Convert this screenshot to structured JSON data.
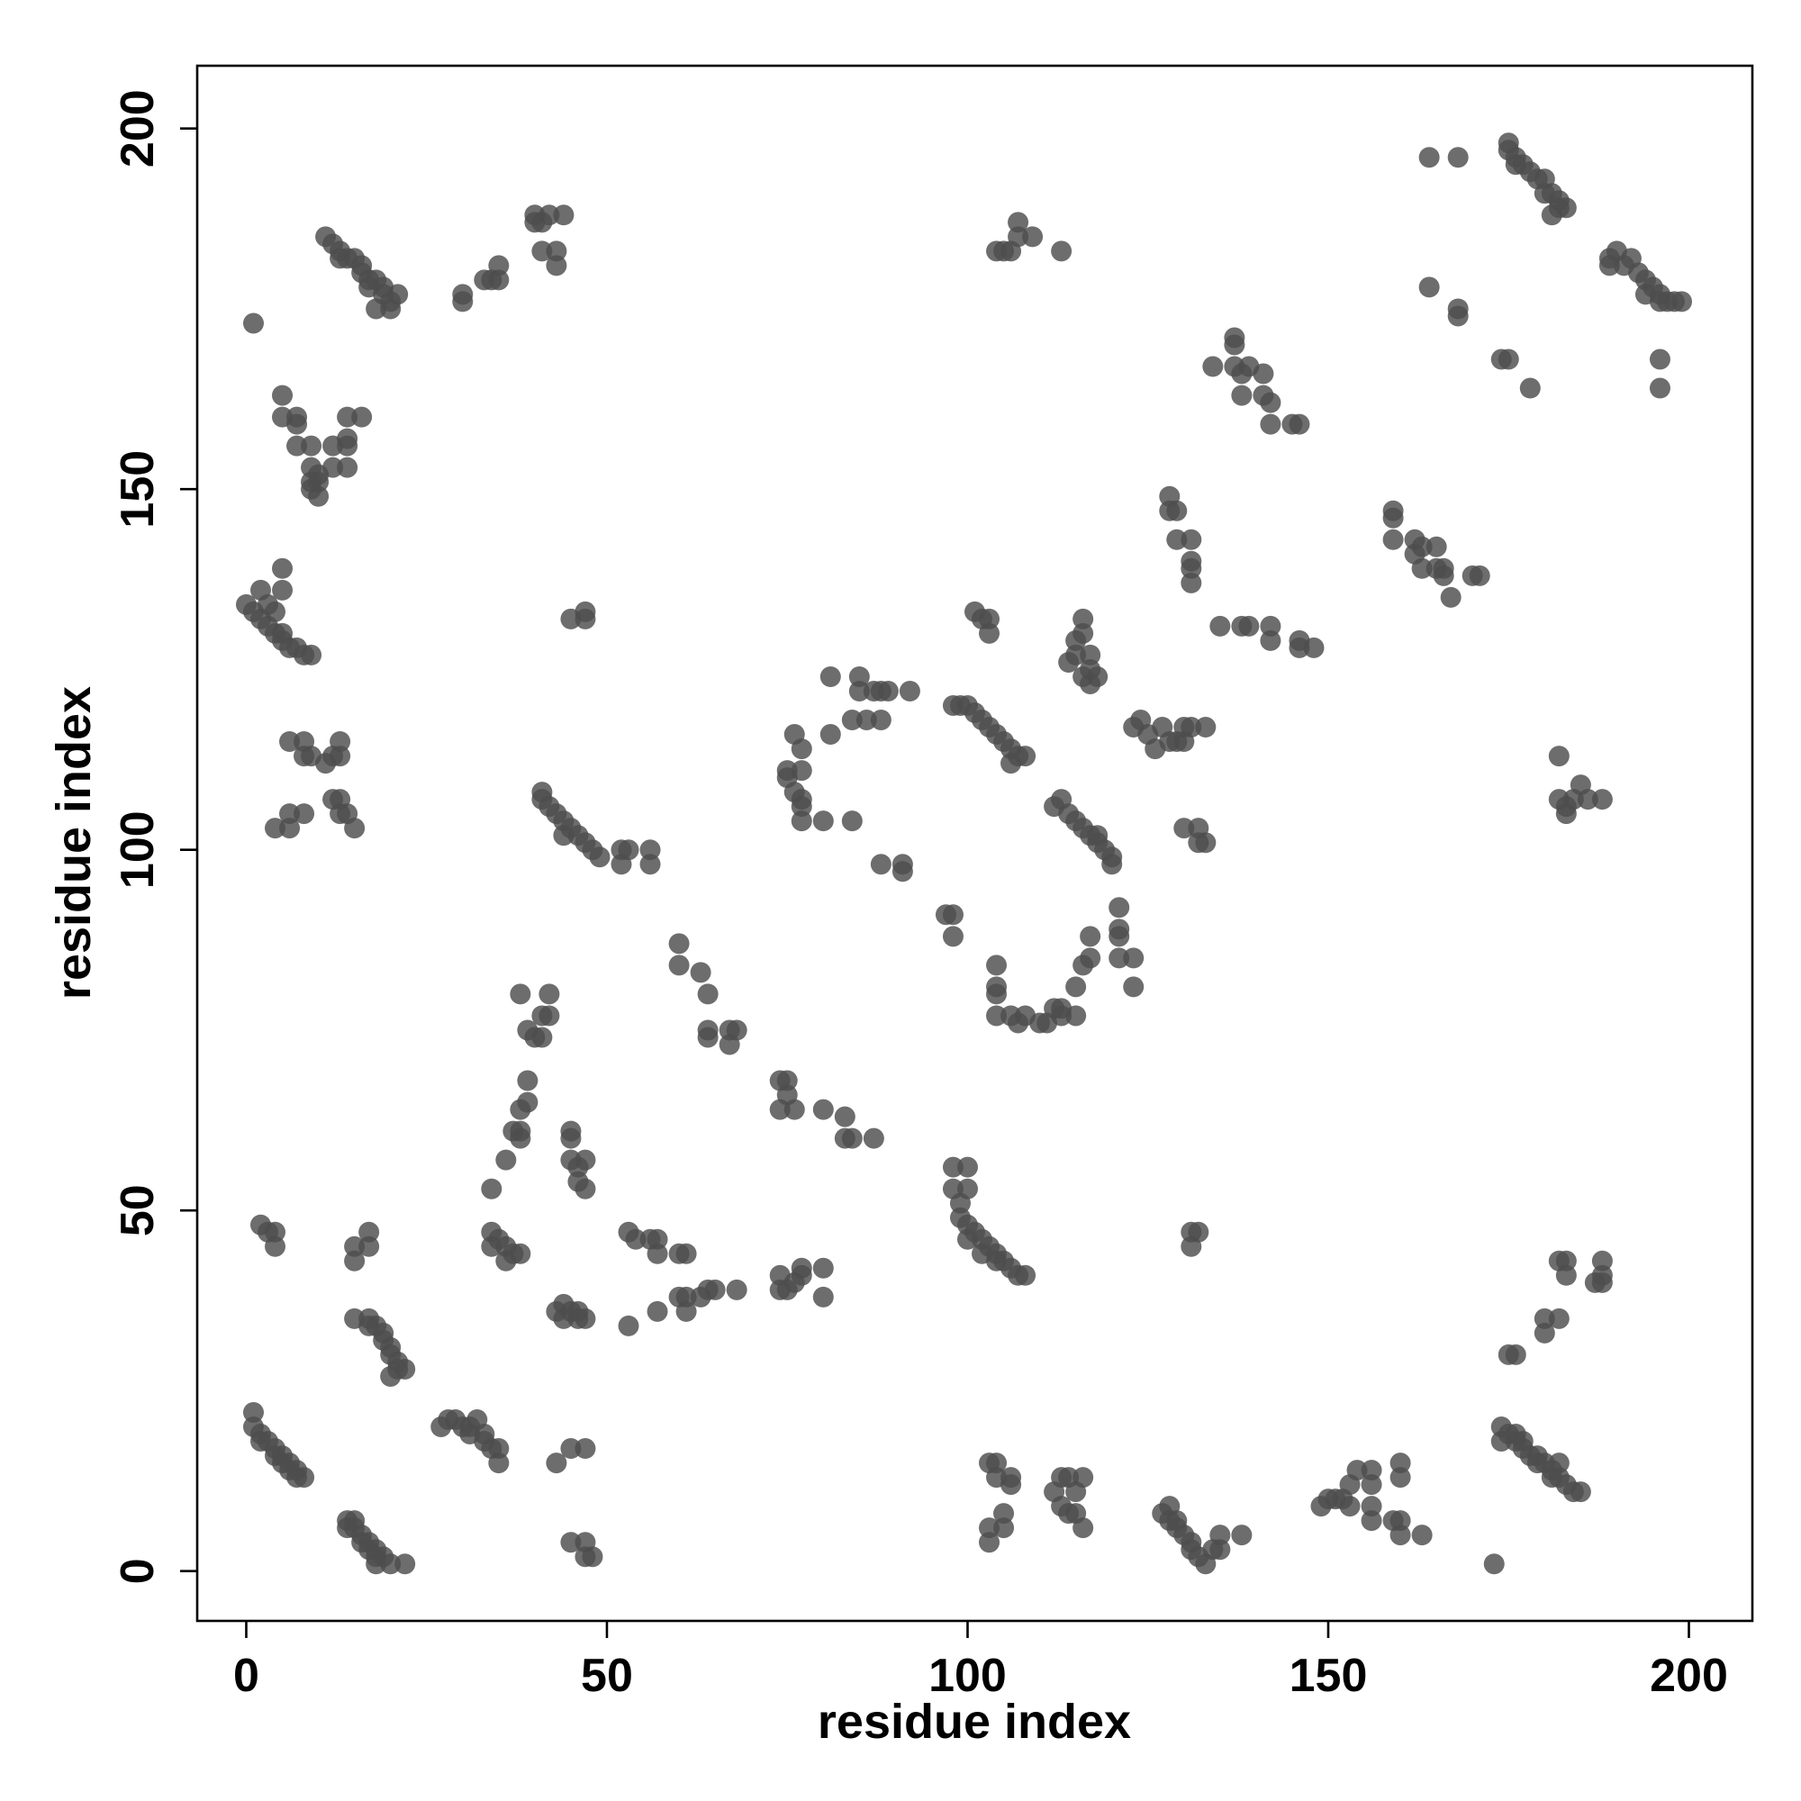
{
  "chart_data": {
    "type": "scatter",
    "x_label": "residue index",
    "y_label": "residue index",
    "xlim": [
      -6.8,
      208.8
    ],
    "ylim": [
      -6.9,
      208.7
    ],
    "xticks": [
      0,
      50,
      100,
      150,
      200
    ],
    "yticks": [
      0,
      50,
      100,
      150,
      200
    ],
    "color": "#4d4d4d",
    "x": [
      1,
      1,
      2,
      2,
      3,
      4,
      4,
      5,
      5,
      6,
      6,
      7,
      7,
      8,
      14,
      14,
      15,
      15,
      16,
      16,
      17,
      17,
      18,
      18,
      19,
      18,
      20,
      22,
      27,
      28,
      29,
      30,
      31,
      31,
      32,
      33,
      33,
      34,
      35,
      35,
      15,
      17,
      17,
      18,
      19,
      19,
      20,
      20,
      21,
      21,
      20,
      22,
      2,
      3,
      4,
      4,
      15,
      15,
      17,
      17,
      34,
      34,
      35,
      36,
      37,
      38,
      36,
      34,
      43,
      44,
      44,
      45,
      46,
      47,
      46,
      43,
      45,
      47,
      45,
      47,
      47,
      48,
      53,
      57,
      53,
      54,
      56,
      57,
      57,
      60,
      61,
      61,
      61,
      60,
      63,
      64,
      65,
      68,
      74,
      74,
      75,
      76,
      77,
      77,
      80,
      80,
      38,
      42,
      39,
      40,
      41,
      42,
      41,
      39,
      39,
      38,
      37,
      38,
      38,
      36,
      45,
      45,
      46,
      47,
      46,
      47,
      45,
      60,
      60,
      63,
      64,
      64,
      64,
      67,
      67,
      68,
      74,
      75,
      75,
      74,
      76,
      80,
      83,
      83,
      84,
      87,
      98,
      98,
      100,
      99,
      100,
      99,
      100,
      101,
      102,
      103,
      104,
      105,
      106,
      107,
      108,
      100,
      102,
      104,
      103,
      104,
      104,
      106,
      106,
      103,
      103,
      105,
      105,
      112,
      113,
      114,
      116,
      113,
      114,
      115,
      116,
      115,
      127,
      128,
      128,
      129,
      129,
      130,
      131,
      131,
      132,
      133,
      134,
      135,
      135,
      138,
      131,
      132,
      131,
      149,
      150,
      151,
      152,
      153,
      153,
      154,
      156,
      156,
      156,
      156,
      160,
      160,
      159,
      160,
      160,
      163,
      173,
      174,
      175,
      176,
      176,
      177,
      177,
      178,
      179,
      179,
      180,
      181,
      181,
      182,
      183,
      184,
      185,
      174,
      182,
      175,
      176,
      180,
      180,
      182,
      182,
      183,
      183,
      188,
      188,
      187,
      188,
      1,
      11,
      12,
      13,
      14,
      15,
      16,
      16,
      17,
      18,
      19,
      19,
      20,
      20,
      18,
      17,
      13,
      21,
      30,
      30,
      33,
      34,
      35,
      35,
      40,
      41,
      42,
      44,
      41,
      43,
      43,
      40,
      5,
      5,
      7,
      7,
      7,
      9,
      9,
      9,
      9,
      10,
      10,
      10,
      12,
      12,
      14,
      14,
      14,
      16,
      14,
      0,
      1,
      2,
      2,
      3,
      4,
      5,
      5,
      6,
      7,
      8,
      9,
      5,
      5,
      3,
      4,
      6,
      8,
      8,
      9,
      11,
      12,
      13,
      13,
      4,
      6,
      6,
      8,
      12,
      13,
      13,
      14,
      15,
      41,
      41,
      42,
      43,
      44,
      45,
      46,
      47,
      48,
      49,
      44,
      52,
      53,
      52,
      56,
      56,
      45,
      47,
      47,
      76,
      77,
      75,
      75,
      77,
      76,
      77,
      77,
      77,
      80,
      81,
      84,
      81,
      85,
      85,
      84,
      87,
      88,
      89,
      86,
      88,
      92,
      88,
      91,
      91,
      97,
      98,
      98,
      98,
      99,
      100,
      101,
      102,
      103,
      104,
      105,
      106,
      107,
      108,
      106,
      101,
      102,
      103,
      103,
      104,
      104,
      104,
      104,
      106,
      107,
      108,
      110,
      111,
      112,
      113,
      113,
      115,
      115,
      117,
      117,
      116,
      112,
      113,
      114,
      115,
      116,
      117,
      118,
      119,
      120,
      120,
      118,
      114,
      115,
      115,
      116,
      116,
      116,
      117,
      117,
      117,
      118,
      121,
      121,
      121,
      121,
      123,
      123,
      104,
      105,
      106,
      107,
      107,
      109,
      113,
      123,
      124,
      125,
      126,
      127,
      128,
      129,
      130,
      131,
      133,
      130,
      130,
      132,
      132,
      133,
      128,
      128,
      129,
      129,
      131,
      131,
      131,
      131,
      134,
      137,
      137,
      137,
      138,
      139,
      138,
      141,
      141,
      142,
      142,
      145,
      146,
      135,
      138,
      139,
      142,
      142,
      146,
      146,
      148,
      159,
      159,
      159,
      162,
      162,
      163,
      163,
      165,
      165,
      166,
      166,
      167,
      170,
      171,
      164,
      168,
      164,
      168,
      168,
      174,
      175,
      178,
      175,
      175,
      176,
      176,
      177,
      178,
      179,
      180,
      180,
      181,
      182,
      182,
      183,
      181,
      189,
      189,
      190,
      191,
      192,
      193,
      194,
      194,
      195,
      196,
      197,
      196,
      198,
      199,
      196,
      196,
      182,
      182,
      183,
      183,
      184,
      185,
      186,
      188
    ],
    "y": [
      22,
      20,
      19,
      18,
      18,
      17,
      16,
      16,
      15,
      15,
      14,
      14,
      13,
      13,
      7,
      6,
      7,
      6,
      5,
      4,
      4,
      3,
      3,
      2,
      2,
      1,
      1,
      1,
      20,
      21,
      21,
      20,
      20,
      19,
      21,
      19,
      18,
      17,
      17,
      15,
      35,
      35,
      34,
      34,
      33,
      32,
      31,
      30,
      29,
      28,
      27,
      28,
      48,
      47,
      47,
      45,
      45,
      43,
      45,
      47,
      47,
      45,
      46,
      45,
      44,
      44,
      43,
      53,
      36,
      37,
      35,
      36,
      35,
      35,
      36,
      15,
      17,
      17,
      4,
      4,
      2,
      2,
      34,
      36,
      47,
      46,
      46,
      46,
      44,
      38,
      38,
      36,
      44,
      44,
      38,
      39,
      39,
      39,
      41,
      39,
      39,
      40,
      42,
      41,
      42,
      38,
      80,
      80,
      75,
      74,
      74,
      77,
      77,
      68,
      65,
      64,
      61,
      61,
      60,
      57,
      61,
      57,
      56,
      57,
      54,
      53,
      60,
      87,
      84,
      83,
      80,
      75,
      74,
      75,
      73,
      75,
      68,
      68,
      66,
      64,
      64,
      64,
      63,
      60,
      60,
      60,
      53,
      56,
      56,
      51,
      53,
      49,
      48,
      47,
      46,
      45,
      44,
      43,
      42,
      41,
      41,
      46,
      44,
      43,
      15,
      15,
      13,
      13,
      12,
      6,
      4,
      8,
      6,
      11,
      13,
      13,
      13,
      9,
      8,
      8,
      6,
      11,
      8,
      9,
      7,
      7,
      6,
      5,
      4,
      3,
      2,
      1,
      3,
      3,
      5,
      5,
      47,
      47,
      45,
      9,
      10,
      10,
      10,
      9,
      12,
      14,
      14,
      12,
      9,
      7,
      15,
      13,
      7,
      7,
      5,
      5,
      1,
      20,
      19,
      19,
      18,
      18,
      17,
      16,
      16,
      15,
      15,
      14,
      13,
      13,
      12,
      11,
      11,
      18,
      15,
      30,
      30,
      33,
      35,
      35,
      43,
      43,
      41,
      43,
      41,
      40,
      40,
      173,
      185,
      184,
      183,
      182,
      182,
      181,
      180,
      179,
      179,
      178,
      177,
      176,
      175,
      175,
      178,
      182,
      177,
      177,
      176,
      179,
      179,
      181,
      179,
      188,
      187,
      188,
      188,
      183,
      183,
      181,
      187,
      163,
      160,
      160,
      159,
      156,
      156,
      153,
      151,
      150,
      149,
      151,
      152,
      156,
      153,
      153,
      156,
      160,
      160,
      157,
      134,
      133,
      132,
      136,
      131,
      130,
      130,
      129,
      128,
      128,
      127,
      127,
      139,
      136,
      134,
      133,
      115,
      115,
      113,
      113,
      112,
      113,
      113,
      115,
      103,
      103,
      105,
      105,
      107,
      107,
      105,
      105,
      103,
      108,
      107,
      106,
      105,
      104,
      103,
      102,
      101,
      100,
      99,
      102,
      100,
      100,
      98,
      100,
      98,
      132,
      133,
      132,
      116,
      114,
      111,
      110,
      111,
      108,
      107,
      106,
      104,
      104,
      116,
      104,
      124,
      124,
      122,
      118,
      122,
      122,
      122,
      118,
      118,
      122,
      98,
      98,
      97,
      91,
      91,
      88,
      120,
      120,
      120,
      119,
      118,
      117,
      116,
      115,
      114,
      113,
      113,
      112,
      133,
      132,
      132,
      130,
      84,
      81,
      80,
      77,
      77,
      76,
      77,
      76,
      76,
      78,
      77,
      78,
      77,
      81,
      85,
      88,
      84,
      106,
      107,
      105,
      104,
      103,
      102,
      101,
      100,
      99,
      98,
      102,
      126,
      127,
      129,
      130,
      132,
      124,
      123,
      125,
      127,
      124,
      92,
      89,
      88,
      85,
      85,
      81,
      183,
      183,
      183,
      185,
      187,
      185,
      183,
      117,
      118,
      116,
      114,
      117,
      115,
      115,
      117,
      117,
      117,
      115,
      103,
      103,
      101,
      101,
      149,
      147,
      147,
      143,
      143,
      140,
      139,
      137,
      167,
      171,
      170,
      167,
      166,
      167,
      163,
      166,
      163,
      162,
      159,
      159,
      159,
      131,
      131,
      131,
      131,
      129,
      129,
      128,
      128,
      147,
      146,
      143,
      143,
      141,
      139,
      142,
      142,
      139,
      139,
      138,
      135,
      138,
      138,
      196,
      196,
      178,
      175,
      174,
      168,
      168,
      164,
      198,
      197,
      196,
      195,
      195,
      194,
      193,
      193,
      191,
      191,
      190,
      189,
      189,
      188,
      182,
      181,
      183,
      181,
      182,
      180,
      179,
      177,
      178,
      177,
      176,
      176,
      176,
      176,
      168,
      164,
      113,
      107,
      106,
      105,
      107,
      109,
      107,
      107
    ]
  }
}
